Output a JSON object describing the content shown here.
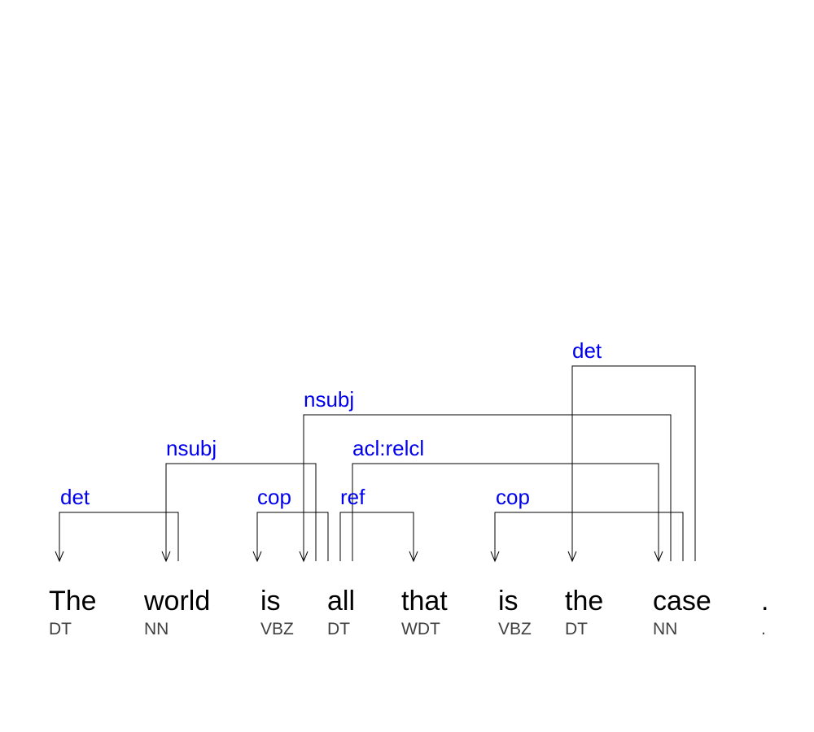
{
  "tokens": [
    {
      "word": "The",
      "pos": "DT"
    },
    {
      "word": "world",
      "pos": "NN"
    },
    {
      "word": "is",
      "pos": "VBZ"
    },
    {
      "word": "all",
      "pos": "DT"
    },
    {
      "word": "that",
      "pos": "WDT"
    },
    {
      "word": "is",
      "pos": "VBZ"
    },
    {
      "word": "the",
      "pos": "DT"
    },
    {
      "word": "case",
      "pos": "NN"
    },
    {
      "word": ".",
      "pos": "."
    }
  ],
  "dependencies": [
    {
      "label": "det",
      "head": 1,
      "dependent": 0
    },
    {
      "label": "nsubj",
      "head": 3,
      "dependent": 1
    },
    {
      "label": "cop",
      "head": 3,
      "dependent": 2
    },
    {
      "label": "ref",
      "head": 3,
      "dependent": 4
    },
    {
      "label": "acl:relcl",
      "head": 3,
      "dependent": 7
    },
    {
      "label": "cop",
      "head": 7,
      "dependent": 5
    },
    {
      "label": "nsubj",
      "head": 7,
      "dependent": 3
    },
    {
      "label": "det",
      "head": 7,
      "dependent": 6
    }
  ]
}
